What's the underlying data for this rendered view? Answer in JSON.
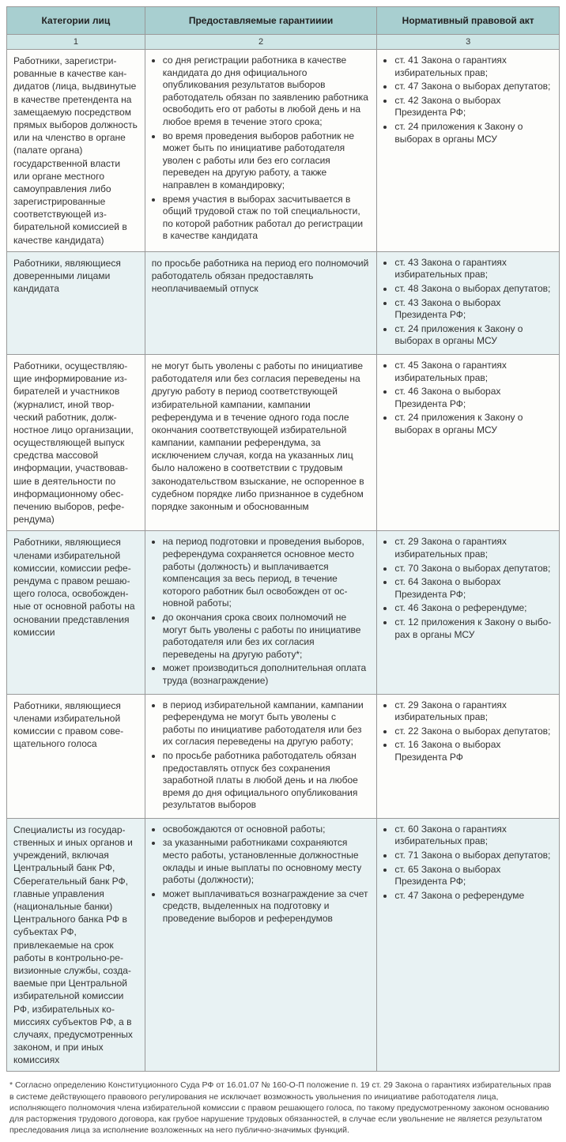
{
  "table": {
    "headers": [
      "Категории лиц",
      "Предоставляемые гарантииии",
      "Нормативный правовой акт"
    ],
    "numbers": [
      "1",
      "2",
      "3"
    ],
    "rows": [
      {
        "cat": "Работники, зарегистри­рованные в качестве кан­дидатов (лица, выдвину­тые в качестве претен­дента на замещаемую посредством прямых вы­боров должность или на членство в органе (палате органа) государственной власти или органе мест­ного самоуправления либо зарегистрирован­ные соответствующей из­бирательной комиссией в качестве кандидата)",
        "guar_list": [
          "со дня регистрации работника в качестве кандида­та до дня официального опубликования результатов выборов работодатель обязан по заявлению работ­ника освободить его от работы в любой день и на любое время в течение этого срока;",
          "во время проведения выборов работник не может быть по инициативе работодателя уволен с работы или без его согласия переведен на другую работу, а также направлен в командировку;",
          "время участия в выборах засчитывается в общий трудовой стаж по той специальности, по которой ра­ботник работал до регистрации в качестве кандидата"
        ],
        "law_list": [
          "ст. 41 Закона о гарантиях избиратель­ных прав;",
          "ст. 47 Закона о выборах депутатов;",
          "ст. 42 Закона о выборах Президента РФ;",
          "ст. 24 приложения к Закону о выборах в органы МСУ"
        ]
      },
      {
        "cat": "Работники, являющие­ся доверенными лицами кандидата",
        "guar_plain": "по просьбе работника на период его полномочий работодатель обязан предоставлять неоплачивае­мый отпуск",
        "law_list": [
          "ст. 43 Закона о гарантиях избиратель­ных прав;",
          "ст. 48 Закона о выборах депутатов;",
          "ст. 43 Закона о выборах Президента РФ;",
          "ст. 24 приложения к Закону о выборах в органы МСУ"
        ]
      },
      {
        "cat": "Работники, осуществляю­щие информирование из­бирателей и участников (журналист, иной твор­ческий работник, долж­ностное лицо организа­ции, осуществляющей выпуск средства массовой информации, участвовав­шие в деятельности по информационному обес­печению выборов, рефе­рендума)",
        "guar_plain": "не могут быть уволены с работы по инициативе ра­ботодателя или без согласия переведены на другую работу в период соответствующей избирательной кампании, кампании референдума и в течение од­ного года после окончания соответствующей из­бирательной кампании, кампании референдума, за исключением случая, когда на указанных лиц было наложено в соответствии с трудовым законодатель­ством взыскание, не оспоренное в судебном поряд­ке либо признанное в судебном порядке законным и обоснованным",
        "law_list": [
          "ст. 45 Закона о гарантиях избиратель­ных прав;",
          "ст. 46 Закона о выборах Президента РФ;",
          "ст. 24 приложения к Закону о выборах в органы МСУ"
        ]
      },
      {
        "cat": "Работники, являющиеся членами избирательной комиссии, комиссии рефе­рендума с правом решаю­щего голоса, освобожден­ные от основной работы на основании представле­ния комиссии",
        "guar_list": [
          "на период подготовки и проведения выборов, рефе­рендума сохраняется основное место работы (долж­ность) и выплачивается компенсация за весь период, в течение которого работник был освобожден от ос­новной работы;",
          "до окончания срока своих полномочий не могут быть уволены с работы по инициативе работодателя или без их согласия переведены на другую работу*;",
          "может производиться дополнительная оплата труда (вознаграждение)"
        ],
        "law_list": [
          "ст. 29 Закона о гарантиях избиратель­ных прав;",
          "ст. 70 Закона о выборах депутатов;",
          "ст. 64 Закона о выборах Президента РФ;",
          "ст. 46 Закона о референдуме;",
          "ст. 12 приложения к Закону о выбо­рах в органы МСУ"
        ]
      },
      {
        "cat": "Работники, являющиеся членами избирательной комиссии с правом сове­щательного голоса",
        "guar_list": [
          "в период избирательной кампании, кампании рефе­рендума не могут быть уволены с работы по иници­ативе работодателя или без их согласия переведены на другую работу;",
          "по просьбе работника работодатель обязан предо­ставлять отпуск без сохранения заработной платы в любой день и на любое время до дня официального опубликования результатов выборов"
        ],
        "law_list": [
          "ст. 29 Закона о гарантиях избиратель­ных прав;",
          "ст. 22 Закона о выборах депутатов;",
          "ст. 16 Закона о выборах Президента РФ"
        ]
      },
      {
        "cat": "Специалисты из государ­ственных и иных органов и учреждений, включая Центральный банк РФ, Сбе­регательный банк РФ, глав­ные управления (нацио­нальные банки) Централь­ного банка РФ в субъектах РФ, привлекаемые на срок работы в контрольно-ре­визионные службы, созда­ваемые при Центральной избирательной комиссии РФ, избирательных ко­миссиях субъектов РФ, а в случаях, предусмотрен­ных законом, и при иных комиссиях",
        "guar_list": [
          "освобождаются от основной работы;",
          "за указанными работниками сохраняются место ра­боты, установленные должностные оклады и иные выплаты по основному месту работы (должности);",
          "может выплачиваться вознаграждение за счет средств, выделенных на подготовку и проведение выборов и референдумов"
        ],
        "law_list": [
          "ст. 60 Закона о гарантиях избиратель­ных прав;",
          "ст. 71 Закона о выборах депутатов;",
          "ст. 65 Закона о выборах Президента РФ;",
          "ст. 47 Закона о референдуме"
        ]
      }
    ]
  },
  "footnote": "* Согласно определению Конституционного Суда РФ от 16.01.07 № 160-О-П положение п. 19 ст. 29 Закона о гарантиях избирательных прав в системе действующего правового регулирования не исключает возможность увольнения по инициативе работодателя лица, исполняющего полномочия члена избирательной комиссии с правом решающего голоса, по такому предусмотренному законом основанию для расторжения трудового договора, как грубое нарушение трудовых обязанностей, в случае если увольнение не является результатом преследования лица за исполнение возложенных на него публично-значимых функций."
}
